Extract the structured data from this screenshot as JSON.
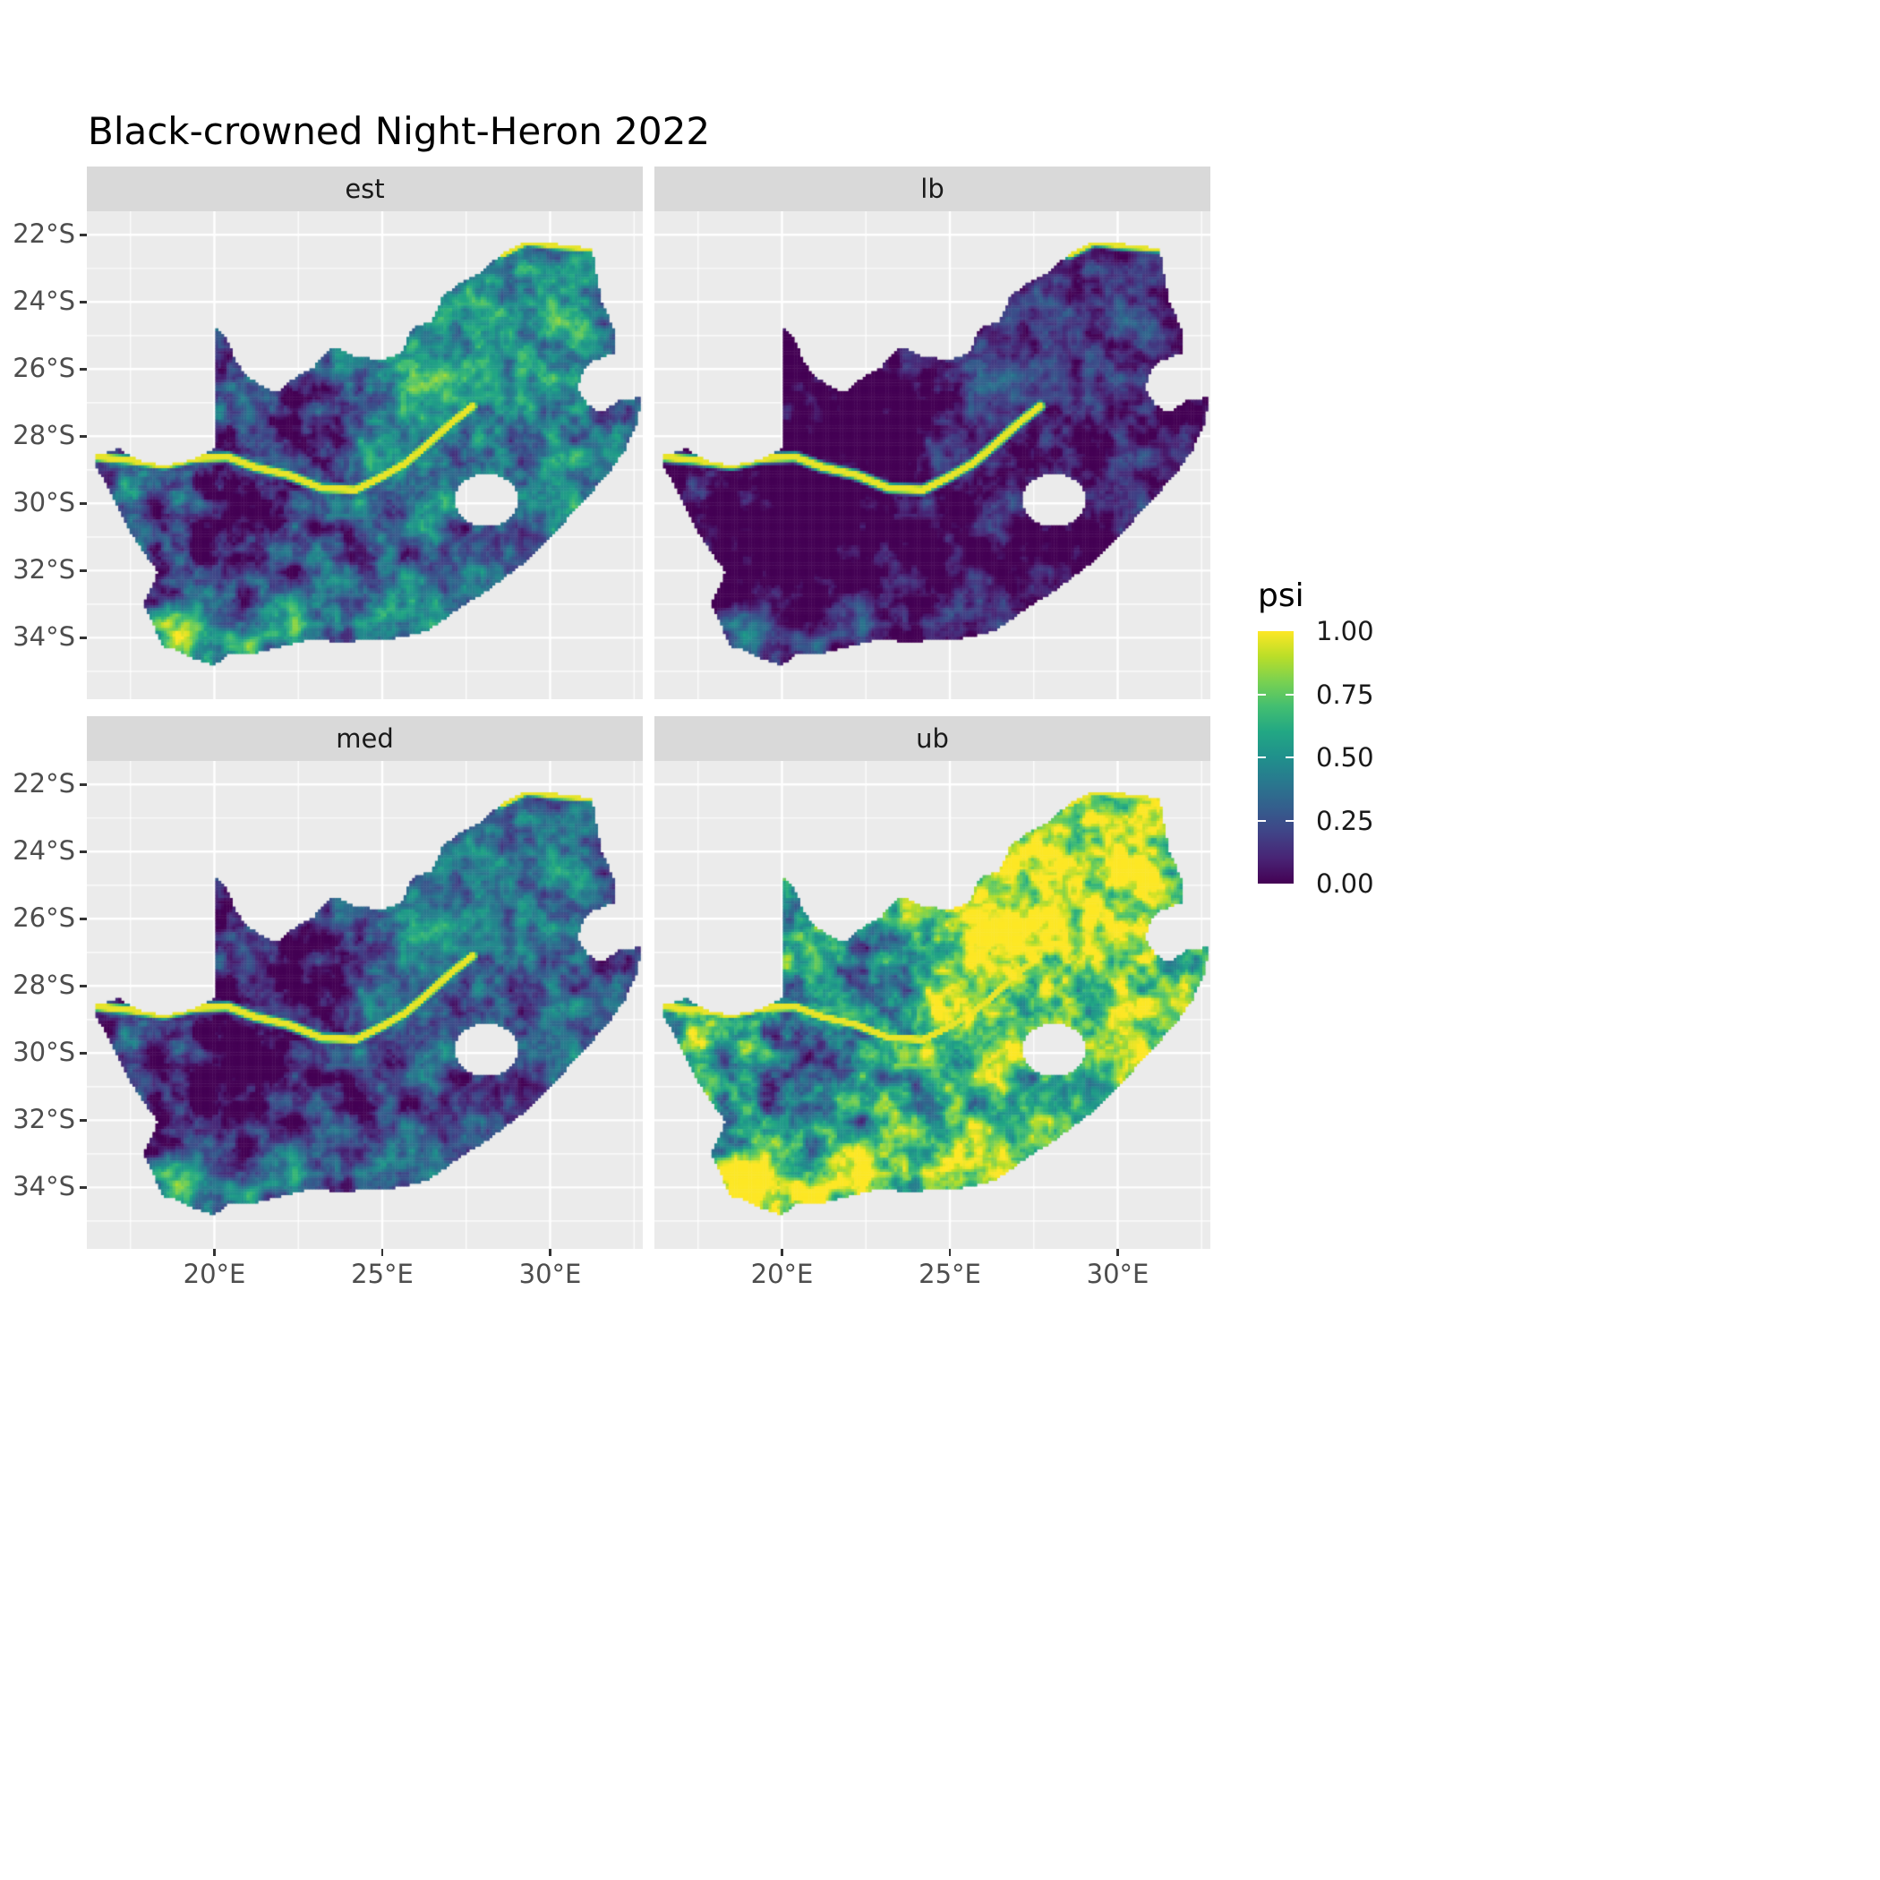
{
  "title": "Black-crowned Night-Heron 2022",
  "chart_data": {
    "type": "heatmap",
    "title": "Black-crowned Night-Heron 2022",
    "subtitle": "",
    "facet_variable": "estimate",
    "facets": [
      {
        "id": "est",
        "label": "est",
        "mul": 1.0,
        "add": 0.02
      },
      {
        "id": "lb",
        "label": "lb",
        "mul": 0.72,
        "add": -0.2
      },
      {
        "id": "med",
        "label": "med",
        "mul": 0.9,
        "add": -0.06
      },
      {
        "id": "ub",
        "label": "ub",
        "mul": 1.25,
        "add": 0.3
      }
    ],
    "x_ticks": [
      {
        "lon": 20,
        "label": "20°E"
      },
      {
        "lon": 25,
        "label": "25°E"
      },
      {
        "lon": 30,
        "label": "30°E"
      }
    ],
    "y_ticks": [
      {
        "lat": -22,
        "label": "22°S"
      },
      {
        "lat": -24,
        "label": "24°S"
      },
      {
        "lat": -26,
        "label": "26°S"
      },
      {
        "lat": -28,
        "label": "28°S"
      },
      {
        "lat": -30,
        "label": "30°S"
      },
      {
        "lat": -32,
        "label": "32°S"
      },
      {
        "lat": -34,
        "label": "34°S"
      }
    ],
    "x_minor": [
      17.5,
      22.5,
      27.5,
      32.5
    ],
    "y_minor": [
      -23,
      -25,
      -27,
      -29,
      -31,
      -33,
      -35
    ],
    "extent": {
      "lon_min": 16.2,
      "lon_max": 32.76,
      "lat_top": -21.3,
      "lat_bottom": -35.83
    },
    "legend": {
      "title": "psi",
      "ticks": [
        "1.00",
        "0.75",
        "0.50",
        "0.25",
        "0.00"
      ],
      "tick_values": [
        1.0,
        0.75,
        0.5,
        0.25,
        0.0
      ],
      "limits": [
        0,
        1
      ]
    },
    "colors": {
      "panel_bg": "#ebebeb",
      "strip_bg": "#d9d9d9",
      "grid": "#ffffff",
      "axis_text": "#4d4d4d",
      "title_color": "#000000",
      "viridis": [
        {
          "t": 0.0,
          "c": [
            68,
            1,
            84
          ]
        },
        {
          "t": 0.1,
          "c": [
            72,
            36,
            117
          ]
        },
        {
          "t": 0.2,
          "c": [
            64,
            67,
            135
          ]
        },
        {
          "t": 0.3,
          "c": [
            52,
            94,
            141
          ]
        },
        {
          "t": 0.4,
          "c": [
            41,
            120,
            142
          ]
        },
        {
          "t": 0.5,
          "c": [
            32,
            144,
            140
          ]
        },
        {
          "t": 0.6,
          "c": [
            34,
            167,
            132
          ]
        },
        {
          "t": 0.7,
          "c": [
            66,
            190,
            113
          ]
        },
        {
          "t": 0.8,
          "c": [
            121,
            209,
            81
          ]
        },
        {
          "t": 0.9,
          "c": [
            186,
            222,
            40
          ]
        },
        {
          "t": 1.0,
          "c": [
            253,
            231,
            37
          ]
        }
      ]
    },
    "cell_deg": 0.085,
    "region": {
      "name": "South Africa",
      "boundary": [
        [
          16.45,
          -28.58
        ],
        [
          17.15,
          -28.38
        ],
        [
          17.75,
          -28.72
        ],
        [
          18.5,
          -28.87
        ],
        [
          19.3,
          -28.72
        ],
        [
          19.75,
          -28.5
        ],
        [
          20.0,
          -28.38
        ],
        [
          20.0,
          -24.77
        ],
        [
          20.35,
          -25.05
        ],
        [
          20.62,
          -25.7
        ],
        [
          20.95,
          -26.2
        ],
        [
          21.55,
          -26.6
        ],
        [
          21.95,
          -26.64
        ],
        [
          22.45,
          -26.2
        ],
        [
          22.95,
          -25.95
        ],
        [
          23.5,
          -25.32
        ],
        [
          24.15,
          -25.6
        ],
        [
          24.95,
          -25.73
        ],
        [
          25.55,
          -25.52
        ],
        [
          25.85,
          -24.9
        ],
        [
          25.95,
          -24.72
        ],
        [
          26.45,
          -24.62
        ],
        [
          26.8,
          -23.85
        ],
        [
          27.25,
          -23.45
        ],
        [
          27.95,
          -23.1
        ],
        [
          28.55,
          -22.58
        ],
        [
          29.3,
          -22.2
        ],
        [
          29.95,
          -22.25
        ],
        [
          30.55,
          -22.32
        ],
        [
          31.25,
          -22.4
        ],
        [
          31.4,
          -23.3
        ],
        [
          31.55,
          -24.05
        ],
        [
          31.9,
          -24.8
        ],
        [
          31.95,
          -25.5
        ],
        [
          31.3,
          -25.75
        ],
        [
          30.95,
          -26.1
        ],
        [
          30.82,
          -26.6
        ],
        [
          31.1,
          -27.05
        ],
        [
          31.5,
          -27.3
        ],
        [
          31.95,
          -27.0
        ],
        [
          32.1,
          -26.88
        ],
        [
          32.72,
          -26.86
        ],
        [
          32.55,
          -27.7
        ],
        [
          32.2,
          -28.45
        ],
        [
          31.65,
          -29.2
        ],
        [
          30.95,
          -29.95
        ],
        [
          30.2,
          -30.8
        ],
        [
          29.3,
          -31.7
        ],
        [
          28.25,
          -32.5
        ],
        [
          27.25,
          -33.15
        ],
        [
          26.35,
          -33.78
        ],
        [
          25.6,
          -33.99
        ],
        [
          24.8,
          -34.05
        ],
        [
          23.75,
          -34.12
        ],
        [
          22.85,
          -34.05
        ],
        [
          22.1,
          -34.22
        ],
        [
          21.15,
          -34.48
        ],
        [
          20.45,
          -34.47
        ],
        [
          19.98,
          -34.82
        ],
        [
          19.35,
          -34.6
        ],
        [
          18.95,
          -34.38
        ],
        [
          18.45,
          -34.25
        ],
        [
          18.32,
          -33.92
        ],
        [
          17.88,
          -33.0
        ],
        [
          18.32,
          -32.05
        ],
        [
          17.55,
          -30.95
        ],
        [
          17.0,
          -29.85
        ],
        [
          16.48,
          -28.9
        ]
      ],
      "hole": {
        "name": "Lesotho",
        "cx": 28.1,
        "cy": -29.9,
        "rx": 0.95,
        "ry": 0.78
      },
      "rivers": [
        [
          [
            16.5,
            -28.62
          ],
          [
            17.5,
            -28.72
          ],
          [
            18.5,
            -28.86
          ],
          [
            19.4,
            -28.66
          ],
          [
            20.4,
            -28.62
          ],
          [
            21.2,
            -28.92
          ],
          [
            22.2,
            -29.15
          ],
          [
            23.2,
            -29.55
          ],
          [
            24.2,
            -29.6
          ],
          [
            25.0,
            -29.2
          ],
          [
            25.7,
            -28.8
          ],
          [
            26.4,
            -28.2
          ],
          [
            27.0,
            -27.65
          ],
          [
            27.7,
            -27.1
          ]
        ],
        [
          [
            28.55,
            -22.58
          ],
          [
            29.3,
            -22.2
          ],
          [
            30.2,
            -22.32
          ],
          [
            31.25,
            -22.4
          ]
        ]
      ]
    },
    "field": {
      "base": 0.3,
      "noise_amp": 0.95,
      "blobs": [
        {
          "x": 27.7,
          "y": -26.3,
          "sx": 2.6,
          "sy": 1.7,
          "w": 0.33
        },
        {
          "x": 30.0,
          "y": -23.7,
          "sx": 1.7,
          "sy": 1.1,
          "w": 0.3
        },
        {
          "x": 18.9,
          "y": -33.9,
          "sx": 1.0,
          "sy": 0.85,
          "w": 0.5
        },
        {
          "x": 21.0,
          "y": -34.2,
          "sx": 1.8,
          "sy": 0.7,
          "w": 0.25
        },
        {
          "x": 30.5,
          "y": -29.8,
          "sx": 1.4,
          "sy": 1.2,
          "w": 0.18
        },
        {
          "x": 25.9,
          "y": -28.9,
          "sx": 1.6,
          "sy": 1.2,
          "w": 0.2
        },
        {
          "x": 17.6,
          "y": -30.8,
          "sx": 0.5,
          "sy": 1.6,
          "w": 0.22
        },
        {
          "x": 23.0,
          "y": -33.2,
          "sx": 2.2,
          "sy": 0.9,
          "w": 0.18
        },
        {
          "x": 20.3,
          "y": -30.9,
          "sx": 2.6,
          "sy": 2.0,
          "w": -0.28
        },
        {
          "x": 22.6,
          "y": -27.4,
          "sx": 2.3,
          "sy": 1.6,
          "w": -0.22
        },
        {
          "x": 28.8,
          "y": -31.3,
          "sx": 1.6,
          "sy": 1.1,
          "w": -0.15
        }
      ]
    }
  }
}
